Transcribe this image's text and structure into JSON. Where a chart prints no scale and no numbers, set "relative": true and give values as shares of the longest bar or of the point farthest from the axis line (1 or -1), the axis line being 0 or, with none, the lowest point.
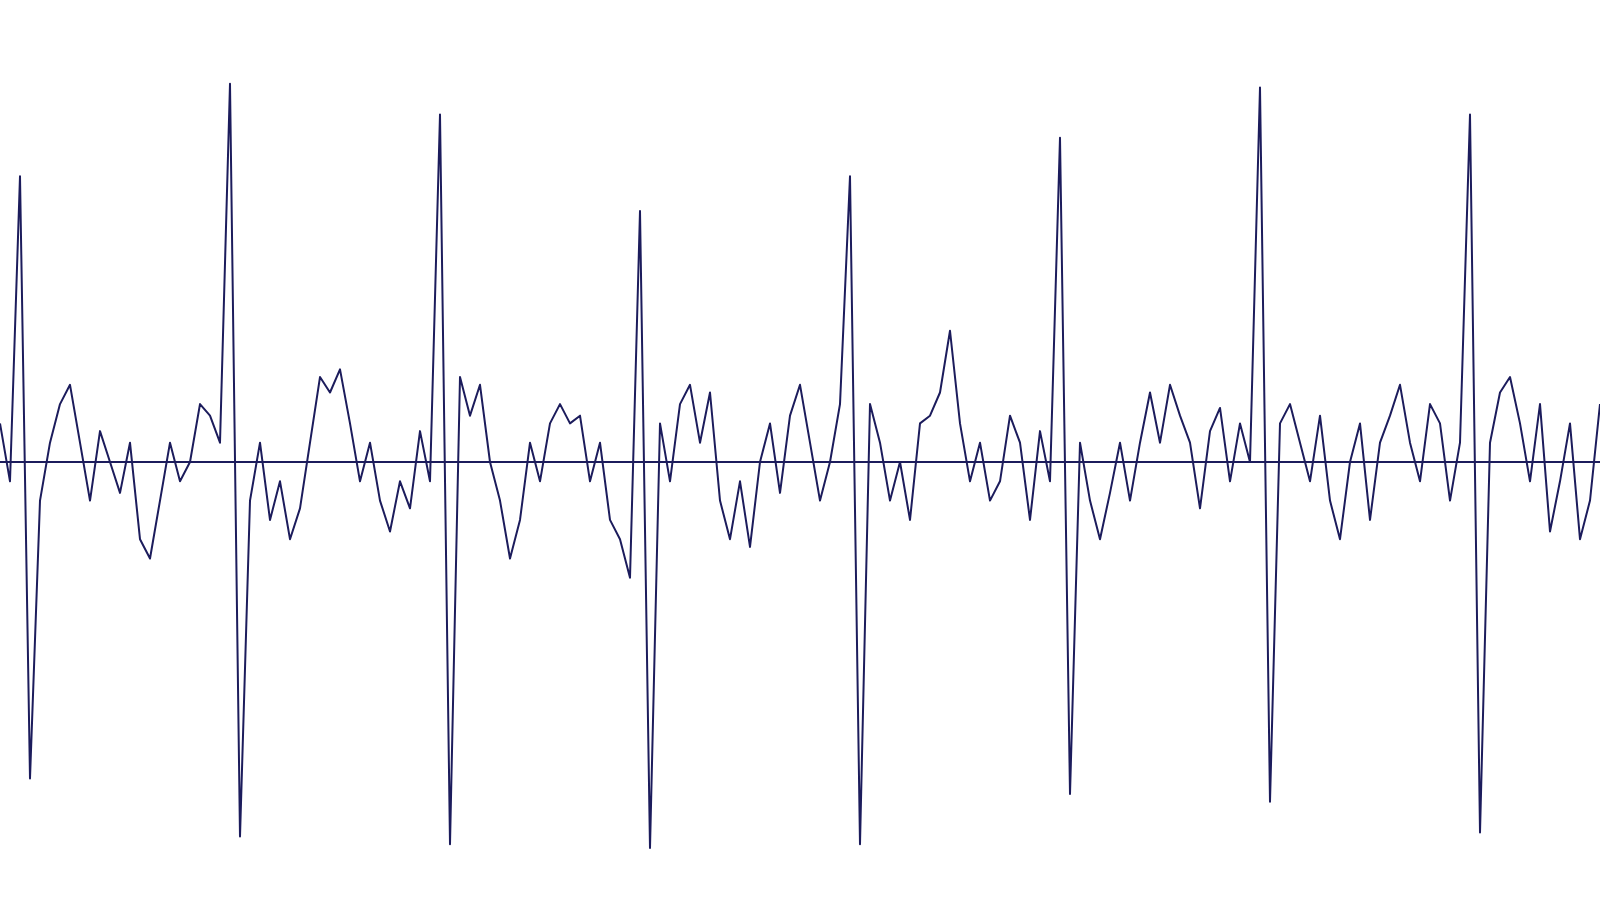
{
  "chart_data": {
    "type": "line",
    "relative": true,
    "color": "#1c1c5c",
    "line_style": "solid",
    "marker": "none",
    "categories": [
      null,
      null,
      null,
      null,
      null,
      null,
      null,
      null,
      null,
      null,
      null,
      null,
      null,
      null,
      null,
      null,
      null,
      null,
      null,
      null,
      null,
      null,
      null,
      null,
      null,
      null,
      null,
      null,
      null,
      null,
      null,
      null,
      null,
      null,
      null,
      null,
      null,
      null,
      null,
      null,
      null,
      null,
      null,
      null,
      null,
      null,
      null,
      null,
      null,
      null,
      null,
      null,
      null,
      null,
      null,
      null,
      null,
      null,
      null,
      null,
      null,
      null,
      null,
      null,
      null,
      null,
      null,
      null,
      null,
      null,
      null,
      null,
      null,
      null,
      null,
      null,
      null,
      null,
      null,
      null,
      null,
      null,
      null,
      null,
      null,
      null,
      null,
      null,
      null,
      null,
      null,
      null,
      null,
      null,
      null,
      null,
      null,
      null,
      null,
      null,
      null,
      null,
      null,
      null,
      null,
      null,
      null,
      null,
      null,
      null,
      null,
      null,
      null,
      null,
      null,
      null,
      null,
      null,
      null,
      null,
      null,
      null,
      null,
      null,
      null,
      null,
      null,
      null,
      null,
      null,
      null,
      null,
      null,
      null,
      null,
      null,
      null,
      null,
      null,
      null,
      null,
      null,
      null,
      null,
      null,
      null,
      null,
      null,
      null,
      null,
      null,
      null,
      null,
      null,
      null,
      null,
      null,
      null,
      null,
      null,
      null
    ],
    "values": [
      0.1,
      -0.05,
      0.74,
      -0.82,
      -0.1,
      0.05,
      0.15,
      0.2,
      0.05,
      -0.1,
      0.08,
      0.0,
      -0.08,
      0.05,
      -0.2,
      -0.25,
      -0.1,
      0.05,
      -0.05,
      0.0,
      0.15,
      0.12,
      0.05,
      0.98,
      -0.97,
      -0.1,
      0.05,
      -0.15,
      -0.05,
      -0.2,
      -0.12,
      0.05,
      0.22,
      0.18,
      0.24,
      0.1,
      -0.05,
      0.05,
      -0.1,
      -0.18,
      -0.05,
      -0.12,
      0.08,
      -0.05,
      0.9,
      -0.99,
      0.22,
      0.12,
      0.2,
      0.0,
      -0.1,
      -0.25,
      -0.15,
      0.05,
      -0.05,
      0.1,
      0.15,
      0.1,
      0.12,
      -0.05,
      0.05,
      -0.15,
      -0.2,
      -0.3,
      0.65,
      -1,
      0.1,
      -0.05,
      0.15,
      0.2,
      0.05,
      0.18,
      -0.1,
      -0.2,
      -0.05,
      -0.22,
      0.0,
      0.1,
      -0.08,
      0.12,
      0.2,
      0.05,
      -0.1,
      0.0,
      0.15,
      0.74,
      -0.99,
      0.15,
      0.05,
      -0.1,
      0.0,
      -0.15,
      0.1,
      0.12,
      0.18,
      0.34,
      0.1,
      -0.05,
      0.05,
      -0.1,
      -0.05,
      0.12,
      0.05,
      -0.15,
      0.08,
      -0.05,
      0.84,
      -0.86,
      0.05,
      -0.1,
      -0.2,
      -0.08,
      0.05,
      -0.1,
      0.05,
      0.18,
      0.05,
      0.2,
      0.12,
      0.05,
      -0.12,
      0.08,
      0.14,
      -0.05,
      0.1,
      0.0,
      0.97,
      -0.88,
      0.1,
      0.15,
      0.05,
      -0.05,
      0.12,
      -0.1,
      -0.2,
      0.0,
      0.1,
      -0.15,
      0.05,
      0.12,
      0.2,
      0.05,
      -0.05,
      0.15,
      0.1,
      -0.1,
      0.05,
      0.9,
      -0.96,
      0.05,
      0.18,
      0.22,
      0.1,
      -0.05,
      0.15,
      -0.18,
      -0.05,
      0.1,
      -0.2,
      -0.1,
      0.15
    ]
  }
}
